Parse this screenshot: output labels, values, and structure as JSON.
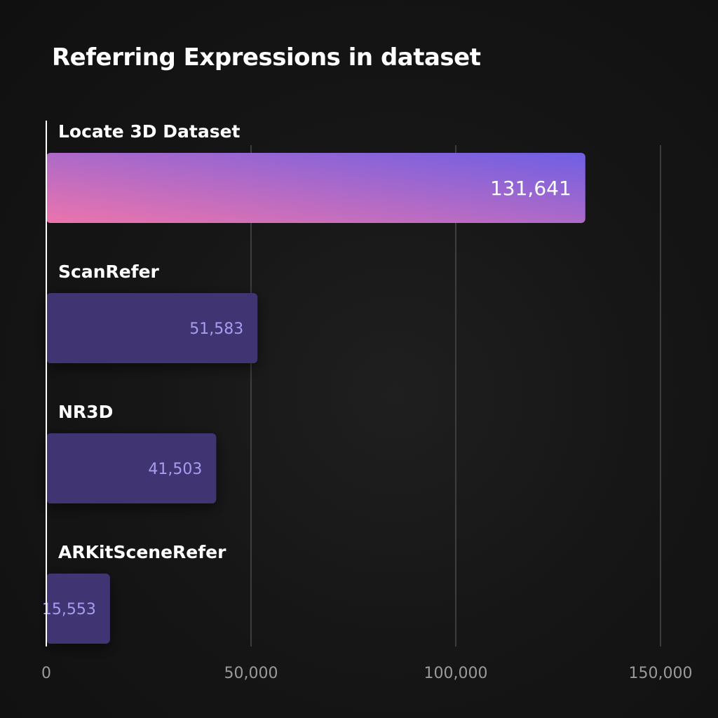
{
  "chart_data": {
    "type": "bar",
    "orientation": "horizontal",
    "title": "Referring Expressions in dataset",
    "categories": [
      "Locate 3D Dataset",
      "ScanRefer",
      "NR3D",
      "ARKitSceneRefer"
    ],
    "values": [
      131641,
      51583,
      41503,
      15553
    ],
    "value_labels": [
      "131,641",
      "51,583",
      "41,503",
      "15,553"
    ],
    "xlim": [
      0,
      150000
    ],
    "xticks": [
      0,
      50000,
      100000,
      150000
    ],
    "xtick_labels": [
      "0",
      "50,000",
      "100,000",
      "150,000"
    ],
    "xlabel": "",
    "ylabel": "",
    "grid": true,
    "legend": "none",
    "highlight_index": 0
  },
  "colors": {
    "background": "#141414",
    "highlight_gradient_start": "#ec74ac",
    "highlight_gradient_end": "#6e5fe4",
    "bar": "#413672",
    "bar_value_text": "#a79df0",
    "highlight_value_text": "#ffffff",
    "grid": "#4a4a4e",
    "axis": "#ffffff",
    "tick_text": "#9a9a9a"
  }
}
